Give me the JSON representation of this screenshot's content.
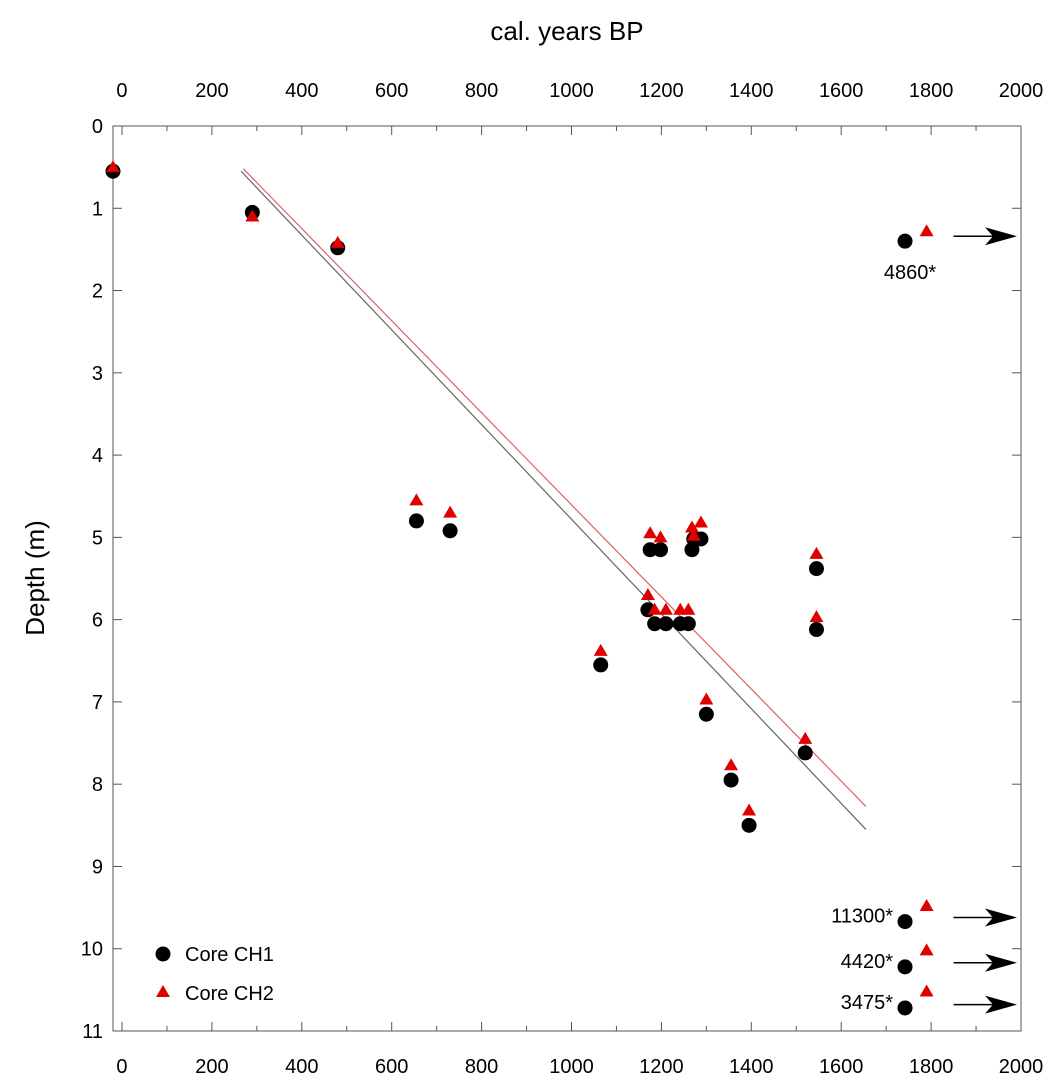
{
  "chart_data": {
    "type": "scatter",
    "title": "",
    "xlabel": "cal. years BP",
    "ylabel": "Depth (m)",
    "xlim": [
      -20,
      2000
    ],
    "ylim": [
      0,
      11
    ],
    "y_inverted": true,
    "x_ticks": [
      0,
      200,
      400,
      600,
      800,
      1000,
      1200,
      1400,
      1600,
      1800,
      2000
    ],
    "x_tick_labels": [
      "0",
      "200",
      "400",
      "600",
      "800",
      "1000",
      "1200",
      "1400",
      "1600",
      "1800",
      "2000"
    ],
    "y_ticks": [
      0,
      1,
      2,
      3,
      4,
      5,
      6,
      7,
      8,
      9,
      10,
      11
    ],
    "y_tick_labels": [
      "0",
      "1",
      "2",
      "3",
      "4",
      "5",
      "6",
      "7",
      "8",
      "9",
      "10",
      "11"
    ],
    "x_axis_position": "top and bottom",
    "grid": false,
    "legend_position": "bottom-left",
    "series": [
      {
        "name": "Core CH1",
        "marker": "circle",
        "color": "#000000",
        "points": [
          [
            -20,
            0.55
          ],
          [
            290,
            1.05
          ],
          [
            480,
            1.48
          ],
          [
            655,
            4.8
          ],
          [
            730,
            4.92
          ],
          [
            1065,
            6.55
          ],
          [
            1170,
            5.88
          ],
          [
            1175,
            5.15
          ],
          [
            1185,
            6.05
          ],
          [
            1198,
            5.15
          ],
          [
            1210,
            6.05
          ],
          [
            1242,
            6.05
          ],
          [
            1260,
            6.05
          ],
          [
            1268,
            5.15
          ],
          [
            1272,
            5.02
          ],
          [
            1288,
            5.02
          ],
          [
            1300,
            7.15
          ],
          [
            1355,
            7.95
          ],
          [
            1395,
            8.5
          ],
          [
            1520,
            7.62
          ],
          [
            1545,
            5.38
          ],
          [
            1545,
            6.12
          ]
        ]
      },
      {
        "name": "Core CH2",
        "marker": "triangle",
        "color": "#e00000",
        "points": [
          [
            -20,
            0.5
          ],
          [
            290,
            1.1
          ],
          [
            480,
            1.42
          ],
          [
            655,
            4.55
          ],
          [
            730,
            4.7
          ],
          [
            1065,
            6.38
          ],
          [
            1170,
            5.7
          ],
          [
            1175,
            4.95
          ],
          [
            1185,
            5.88
          ],
          [
            1198,
            5.0
          ],
          [
            1210,
            5.88
          ],
          [
            1242,
            5.88
          ],
          [
            1260,
            5.88
          ],
          [
            1268,
            4.88
          ],
          [
            1272,
            4.98
          ],
          [
            1288,
            4.82
          ],
          [
            1300,
            6.97
          ],
          [
            1355,
            7.77
          ],
          [
            1395,
            8.32
          ],
          [
            1520,
            7.45
          ],
          [
            1545,
            5.2
          ],
          [
            1545,
            5.97
          ]
        ]
      }
    ],
    "regression_lines": [
      {
        "series": "Core CH1",
        "color": "#666666",
        "from": [
          265,
          0.55
        ],
        "to": [
          1655,
          8.55
        ]
      },
      {
        "series": "Core CH2",
        "color": "#e06060",
        "from": [
          270,
          0.52
        ],
        "to": [
          1655,
          8.27
        ]
      }
    ],
    "offscale_points": [
      {
        "label": "4860*",
        "ch1": [
          1742,
          1.4
        ],
        "ch2": [
          1790,
          1.28
        ],
        "arrow_from": 1850,
        "arrow_to": 2000,
        "arrow_y": 1.34,
        "label_side": "below"
      },
      {
        "label": "11300*",
        "ch1": [
          1742,
          9.67
        ],
        "ch2": [
          1790,
          9.48
        ],
        "arrow_from": 1850,
        "arrow_to": 2000,
        "arrow_y": 9.62,
        "label_side": "left"
      },
      {
        "label": "4420*",
        "ch1": [
          1742,
          10.22
        ],
        "ch2": [
          1790,
          10.02
        ],
        "arrow_from": 1850,
        "arrow_to": 2000,
        "arrow_y": 10.17,
        "label_side": "left"
      },
      {
        "label": "3475*",
        "ch1": [
          1742,
          10.72
        ],
        "ch2": [
          1790,
          10.52
        ],
        "arrow_from": 1850,
        "arrow_to": 2000,
        "arrow_y": 10.68,
        "label_side": "left"
      }
    ]
  }
}
